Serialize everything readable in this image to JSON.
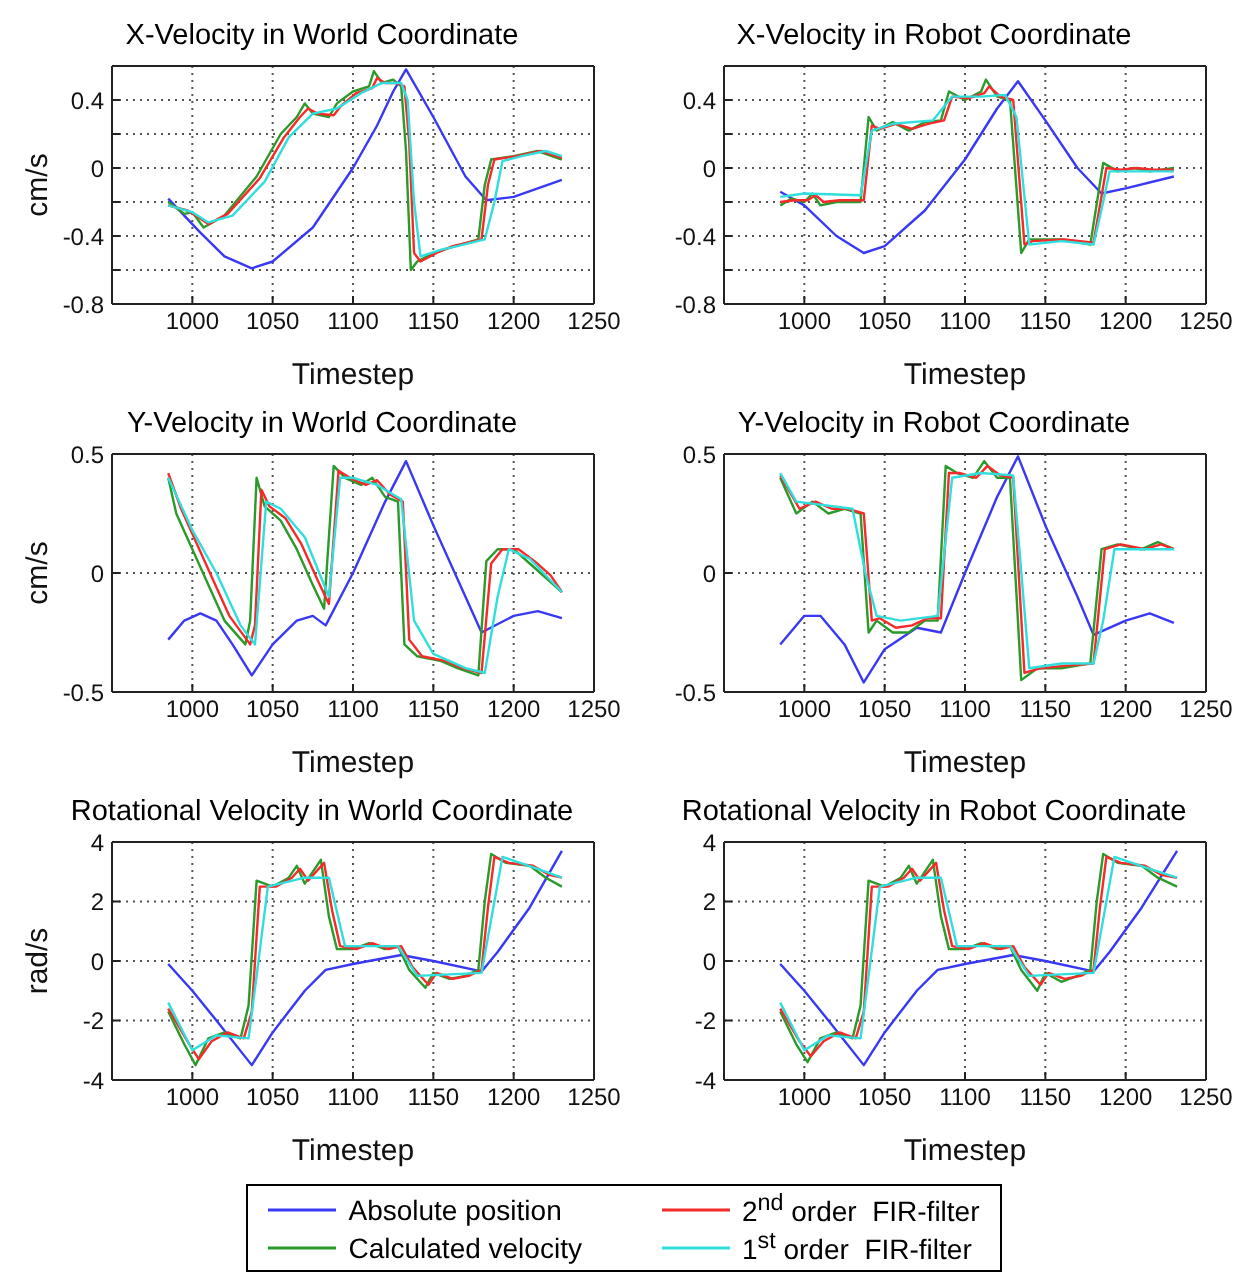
{
  "chart_data": [
    {
      "type": "line",
      "title": "X-Velocity in World Coordinate",
      "xlabel": "Timestep",
      "ylabel": "cm/s",
      "xlim": [
        950,
        1250
      ],
      "xticks": [
        1000,
        1050,
        1100,
        1150,
        1200,
        1250
      ],
      "ylim": [
        -0.8,
        0.6
      ],
      "yticks": [
        -0.8,
        {
          "value": -0.6,
          "label": null
        },
        -0.4,
        {
          "value": -0.2,
          "label": null
        },
        0,
        {
          "value": 0.2,
          "label": null
        },
        0.4
      ],
      "grid": true,
      "marker": "none",
      "line_style": "solid",
      "series": [
        {
          "color": "#3838f5",
          "x": [
            985,
            1005,
            1020,
            1037,
            1050,
            1075,
            1100,
            1115,
            1125,
            1133,
            1150,
            1170,
            1183,
            1200,
            1230
          ],
          "values": [
            -0.18,
            -0.38,
            -0.52,
            -0.59,
            -0.55,
            -0.35,
            0.0,
            0.25,
            0.45,
            0.58,
            0.3,
            -0.05,
            -0.19,
            -0.17,
            -0.07
          ]
        },
        {
          "color": "#2a9a2a",
          "x": [
            985,
            995,
            1000,
            1007,
            1020,
            1040,
            1055,
            1065,
            1070,
            1075,
            1085,
            1090,
            1100,
            1110,
            1113,
            1118,
            1125,
            1130,
            1133,
            1136,
            1140,
            1150,
            1160,
            1178,
            1182,
            1186,
            1200,
            1215,
            1230
          ],
          "values": [
            -0.2,
            -0.27,
            -0.26,
            -0.35,
            -0.28,
            -0.05,
            0.2,
            0.3,
            0.38,
            0.32,
            0.3,
            0.38,
            0.45,
            0.48,
            0.57,
            0.5,
            0.52,
            0.48,
            0.1,
            -0.6,
            -0.55,
            -0.5,
            -0.47,
            -0.42,
            -0.1,
            0.05,
            0.07,
            0.1,
            0.05
          ]
        },
        {
          "color": "#f52a2a",
          "x": [
            985,
            997,
            1002,
            1010,
            1022,
            1042,
            1057,
            1067,
            1072,
            1078,
            1088,
            1093,
            1102,
            1112,
            1115,
            1120,
            1127,
            1132,
            1135,
            1138,
            1142,
            1152,
            1162,
            1180,
            1184,
            1188,
            1202,
            1217,
            1230
          ],
          "values": [
            -0.22,
            -0.25,
            -0.28,
            -0.33,
            -0.27,
            -0.06,
            0.18,
            0.3,
            0.35,
            0.32,
            0.31,
            0.37,
            0.44,
            0.47,
            0.53,
            0.5,
            0.5,
            0.48,
            0.15,
            -0.5,
            -0.55,
            -0.5,
            -0.46,
            -0.42,
            -0.1,
            0.05,
            0.07,
            0.1,
            0.06
          ]
        },
        {
          "color": "#30dede",
          "x": [
            985,
            1000,
            1010,
            1025,
            1045,
            1060,
            1075,
            1090,
            1105,
            1118,
            1130,
            1134,
            1138,
            1142,
            1155,
            1165,
            1182,
            1188,
            1193,
            1205,
            1220,
            1230
          ],
          "values": [
            -0.22,
            -0.26,
            -0.32,
            -0.28,
            -0.08,
            0.18,
            0.32,
            0.35,
            0.44,
            0.5,
            0.5,
            0.4,
            -0.2,
            -0.52,
            -0.48,
            -0.46,
            -0.42,
            -0.2,
            0.04,
            0.07,
            0.1,
            0.07
          ]
        }
      ]
    },
    {
      "type": "line",
      "title": "X-Velocity in Robot Coordinate",
      "xlabel": "Timestep",
      "xlim": [
        950,
        1250
      ],
      "xticks": [
        1000,
        1050,
        1100,
        1150,
        1200,
        1250
      ],
      "ylim": [
        -0.8,
        0.6
      ],
      "yticks": [
        -0.8,
        {
          "value": -0.6,
          "label": null
        },
        -0.4,
        {
          "value": -0.2,
          "label": null
        },
        0,
        {
          "value": 0.2,
          "label": null
        },
        0.4
      ],
      "grid": true,
      "marker": "none",
      "line_style": "solid",
      "series": [
        {
          "color": "#3838f5",
          "x": [
            985,
            1000,
            1020,
            1037,
            1050,
            1075,
            1100,
            1120,
            1133,
            1150,
            1170,
            1185,
            1200,
            1230
          ],
          "values": [
            -0.14,
            -0.22,
            -0.4,
            -0.5,
            -0.46,
            -0.25,
            0.05,
            0.35,
            0.51,
            0.28,
            0.0,
            -0.15,
            -0.12,
            -0.05
          ]
        },
        {
          "color": "#2a9a2a",
          "x": [
            985,
            992,
            1000,
            1005,
            1010,
            1020,
            1035,
            1040,
            1045,
            1055,
            1065,
            1075,
            1085,
            1090,
            1100,
            1110,
            1113,
            1120,
            1128,
            1135,
            1140,
            1160,
            1178,
            1186,
            1195,
            1205,
            1215,
            1230
          ],
          "values": [
            -0.22,
            -0.18,
            -0.2,
            -0.15,
            -0.22,
            -0.2,
            -0.2,
            0.3,
            0.22,
            0.27,
            0.22,
            0.27,
            0.28,
            0.45,
            0.4,
            0.45,
            0.52,
            0.42,
            0.4,
            -0.5,
            -0.42,
            -0.42,
            -0.45,
            0.03,
            -0.02,
            0.0,
            -0.02,
            0.0
          ]
        },
        {
          "color": "#f52a2a",
          "x": [
            985,
            994,
            1002,
            1007,
            1012,
            1022,
            1037,
            1042,
            1047,
            1057,
            1067,
            1077,
            1087,
            1092,
            1102,
            1112,
            1115,
            1122,
            1130,
            1137,
            1142,
            1162,
            1180,
            1188,
            1197,
            1207,
            1217,
            1230
          ],
          "values": [
            -0.2,
            -0.19,
            -0.19,
            -0.16,
            -0.2,
            -0.19,
            -0.19,
            0.25,
            0.23,
            0.26,
            0.23,
            0.26,
            0.28,
            0.42,
            0.41,
            0.44,
            0.48,
            0.42,
            0.4,
            -0.45,
            -0.43,
            -0.42,
            -0.44,
            0.0,
            -0.01,
            0.0,
            -0.01,
            -0.01
          ]
        },
        {
          "color": "#30dede",
          "x": [
            985,
            1000,
            1035,
            1042,
            1055,
            1080,
            1092,
            1110,
            1125,
            1132,
            1140,
            1160,
            1180,
            1186,
            1190,
            1230
          ],
          "values": [
            -0.17,
            -0.15,
            -0.16,
            0.22,
            0.26,
            0.28,
            0.42,
            0.42,
            0.43,
            0.3,
            -0.45,
            -0.43,
            -0.45,
            -0.2,
            -0.02,
            -0.02
          ]
        }
      ]
    },
    {
      "type": "line",
      "title": "Y-Velocity in World Coordinate",
      "xlabel": "Timestep",
      "ylabel": "cm/s",
      "xlim": [
        950,
        1250
      ],
      "xticks": [
        1000,
        1050,
        1100,
        1150,
        1200,
        1250
      ],
      "ylim": [
        -0.5,
        0.5
      ],
      "yticks": [
        -0.5,
        0,
        0.5
      ],
      "grid": true,
      "marker": "none",
      "line_style": "solid",
      "series": [
        {
          "color": "#3838f5",
          "x": [
            985,
            995,
            1005,
            1015,
            1025,
            1037,
            1050,
            1065,
            1075,
            1083,
            1100,
            1120,
            1133,
            1150,
            1170,
            1180,
            1200,
            1215,
            1230
          ],
          "values": [
            -0.28,
            -0.2,
            -0.17,
            -0.2,
            -0.3,
            -0.43,
            -0.3,
            -0.2,
            -0.18,
            -0.22,
            0.0,
            0.3,
            0.47,
            0.2,
            -0.1,
            -0.25,
            -0.18,
            -0.16,
            -0.19
          ]
        },
        {
          "color": "#2a9a2a",
          "x": [
            985,
            990,
            1000,
            1010,
            1020,
            1033,
            1036,
            1040,
            1045,
            1055,
            1065,
            1075,
            1082,
            1088,
            1095,
            1105,
            1112,
            1120,
            1128,
            1132,
            1140,
            1155,
            1165,
            1178,
            1183,
            1190,
            1200,
            1210,
            1220,
            1230
          ],
          "values": [
            0.4,
            0.25,
            0.1,
            -0.05,
            -0.2,
            -0.3,
            -0.2,
            0.4,
            0.28,
            0.22,
            0.1,
            -0.05,
            -0.15,
            0.45,
            0.4,
            0.37,
            0.4,
            0.32,
            0.3,
            -0.3,
            -0.35,
            -0.37,
            -0.4,
            -0.43,
            0.05,
            0.1,
            0.1,
            0.04,
            -0.02,
            -0.08
          ]
        },
        {
          "color": "#f52a2a",
          "x": [
            985,
            993,
            1003,
            1013,
            1023,
            1036,
            1039,
            1043,
            1048,
            1058,
            1068,
            1078,
            1085,
            1091,
            1098,
            1108,
            1115,
            1123,
            1131,
            1135,
            1143,
            1158,
            1168,
            1180,
            1186,
            1193,
            1203,
            1213,
            1223,
            1230
          ],
          "values": [
            0.42,
            0.27,
            0.12,
            -0.03,
            -0.18,
            -0.3,
            -0.22,
            0.35,
            0.28,
            0.23,
            0.12,
            -0.03,
            -0.13,
            0.43,
            0.4,
            0.37,
            0.39,
            0.33,
            0.3,
            -0.28,
            -0.35,
            -0.37,
            -0.4,
            -0.42,
            0.04,
            0.1,
            0.1,
            0.05,
            -0.01,
            -0.08
          ]
        },
        {
          "color": "#30dede",
          "x": [
            985,
            1000,
            1015,
            1030,
            1039,
            1046,
            1055,
            1070,
            1085,
            1092,
            1100,
            1115,
            1130,
            1138,
            1150,
            1170,
            1182,
            1190,
            1197,
            1210,
            1230
          ],
          "values": [
            0.4,
            0.18,
            0.0,
            -0.22,
            -0.3,
            0.3,
            0.27,
            0.15,
            -0.1,
            0.4,
            0.4,
            0.37,
            0.31,
            -0.2,
            -0.34,
            -0.4,
            -0.42,
            -0.1,
            0.1,
            0.06,
            -0.08
          ]
        }
      ]
    },
    {
      "type": "line",
      "title": "Y-Velocity in Robot Coordinate",
      "xlabel": "Timestep",
      "xlim": [
        950,
        1250
      ],
      "xticks": [
        1000,
        1050,
        1100,
        1150,
        1200,
        1250
      ],
      "ylim": [
        -0.5,
        0.5
      ],
      "yticks": [
        -0.5,
        0,
        0.5
      ],
      "grid": true,
      "marker": "none",
      "line_style": "solid",
      "series": [
        {
          "color": "#3838f5",
          "x": [
            985,
            1000,
            1010,
            1025,
            1037,
            1050,
            1070,
            1085,
            1100,
            1120,
            1133,
            1150,
            1170,
            1180,
            1200,
            1215,
            1230
          ],
          "values": [
            -0.3,
            -0.18,
            -0.18,
            -0.3,
            -0.46,
            -0.32,
            -0.23,
            -0.25,
            0.0,
            0.32,
            0.49,
            0.2,
            -0.1,
            -0.26,
            -0.2,
            -0.17,
            -0.21
          ]
        },
        {
          "color": "#2a9a2a",
          "x": [
            985,
            995,
            1005,
            1015,
            1025,
            1035,
            1040,
            1045,
            1055,
            1065,
            1075,
            1083,
            1088,
            1095,
            1105,
            1112,
            1120,
            1128,
            1135,
            1145,
            1160,
            1178,
            1185,
            1195,
            1210,
            1220,
            1230
          ],
          "values": [
            0.4,
            0.25,
            0.3,
            0.25,
            0.27,
            0.25,
            -0.25,
            -0.2,
            -0.25,
            -0.25,
            -0.2,
            -0.2,
            0.45,
            0.42,
            0.4,
            0.47,
            0.4,
            0.4,
            -0.45,
            -0.4,
            -0.4,
            -0.38,
            0.1,
            0.12,
            0.1,
            0.13,
            0.1
          ]
        },
        {
          "color": "#f52a2a",
          "x": [
            985,
            997,
            1007,
            1017,
            1027,
            1037,
            1042,
            1047,
            1057,
            1067,
            1077,
            1085,
            1090,
            1097,
            1107,
            1114,
            1122,
            1130,
            1137,
            1147,
            1162,
            1180,
            1187,
            1197,
            1212,
            1222,
            1230
          ],
          "values": [
            0.41,
            0.27,
            0.3,
            0.27,
            0.27,
            0.25,
            -0.2,
            -0.19,
            -0.23,
            -0.22,
            -0.19,
            -0.19,
            0.42,
            0.42,
            0.4,
            0.45,
            0.41,
            0.4,
            -0.42,
            -0.4,
            -0.39,
            -0.38,
            0.1,
            0.12,
            0.1,
            0.12,
            0.1
          ]
        },
        {
          "color": "#30dede",
          "x": [
            985,
            995,
            1030,
            1038,
            1045,
            1060,
            1083,
            1092,
            1110,
            1130,
            1140,
            1160,
            1180,
            1186,
            1193,
            1230
          ],
          "values": [
            0.42,
            0.3,
            0.27,
            0.0,
            -0.18,
            -0.2,
            -0.18,
            0.4,
            0.42,
            0.41,
            -0.4,
            -0.38,
            -0.38,
            -0.2,
            0.1,
            0.1
          ]
        }
      ]
    },
    {
      "type": "line",
      "title": "Rotational Velocity in World Coordinate",
      "xlabel": "Timestep",
      "ylabel": "rad/s",
      "xlim": [
        950,
        1250
      ],
      "xticks": [
        1000,
        1050,
        1100,
        1150,
        1200,
        1250
      ],
      "ylim": [
        -4,
        4
      ],
      "yticks": [
        -4,
        -2,
        0,
        2,
        4
      ],
      "grid": true,
      "marker": "none",
      "line_style": "solid",
      "series": [
        {
          "color": "#3838f5",
          "x": [
            985,
            1000,
            1015,
            1037,
            1050,
            1070,
            1083,
            1100,
            1130,
            1150,
            1180,
            1190,
            1210,
            1230
          ],
          "values": [
            -0.1,
            -1.0,
            -2.0,
            -3.5,
            -2.4,
            -1.0,
            -0.3,
            -0.1,
            0.2,
            0.0,
            -0.35,
            0.3,
            1.8,
            3.7
          ]
        },
        {
          "color": "#2a9a2a",
          "x": [
            985,
            995,
            1002,
            1010,
            1020,
            1030,
            1035,
            1040,
            1050,
            1060,
            1065,
            1070,
            1080,
            1085,
            1090,
            1100,
            1110,
            1120,
            1128,
            1135,
            1145,
            1150,
            1160,
            1170,
            1178,
            1182,
            1186,
            1195,
            1210,
            1220,
            1230
          ],
          "values": [
            -1.7,
            -2.8,
            -3.5,
            -2.6,
            -2.4,
            -2.6,
            -1.5,
            2.7,
            2.5,
            2.8,
            3.2,
            2.6,
            3.4,
            1.5,
            0.4,
            0.4,
            0.6,
            0.4,
            0.5,
            -0.3,
            -0.9,
            -0.4,
            -0.6,
            -0.5,
            -0.3,
            2.0,
            3.6,
            3.3,
            3.2,
            2.8,
            2.5
          ]
        },
        {
          "color": "#f52a2a",
          "x": [
            985,
            997,
            1004,
            1012,
            1022,
            1032,
            1037,
            1042,
            1052,
            1062,
            1067,
            1072,
            1082,
            1087,
            1092,
            1102,
            1112,
            1122,
            1130,
            1137,
            1147,
            1152,
            1162,
            1172,
            1180,
            1184,
            1188,
            1197,
            1212,
            1222,
            1230
          ],
          "values": [
            -1.6,
            -2.7,
            -3.3,
            -2.7,
            -2.4,
            -2.6,
            -1.7,
            2.5,
            2.5,
            2.8,
            3.1,
            2.7,
            3.3,
            1.7,
            0.5,
            0.4,
            0.6,
            0.4,
            0.5,
            -0.2,
            -0.8,
            -0.4,
            -0.6,
            -0.5,
            -0.3,
            1.8,
            3.5,
            3.3,
            3.2,
            2.9,
            2.8
          ]
        },
        {
          "color": "#30dede",
          "x": [
            985,
            1000,
            1015,
            1035,
            1040,
            1047,
            1070,
            1085,
            1095,
            1128,
            1140,
            1180,
            1188,
            1193,
            1215,
            1230
          ],
          "values": [
            -1.4,
            -3.0,
            -2.5,
            -2.6,
            -0.5,
            2.5,
            2.8,
            2.8,
            0.5,
            0.5,
            -0.5,
            -0.4,
            2.0,
            3.5,
            3.1,
            2.8
          ]
        }
      ]
    },
    {
      "type": "line",
      "title": "Rotational Velocity in Robot Coordinate",
      "xlabel": "Timestep",
      "xlim": [
        950,
        1250
      ],
      "xticks": [
        1000,
        1050,
        1100,
        1150,
        1200,
        1250
      ],
      "ylim": [
        -4,
        4
      ],
      "yticks": [
        -4,
        -2,
        0,
        2,
        4
      ],
      "grid": true,
      "legend": "bottom",
      "marker": "none",
      "line_style": "solid",
      "series": [
        {
          "name": "Absolute position",
          "color": "#3838f5",
          "x": [
            985,
            1000,
            1015,
            1037,
            1050,
            1070,
            1083,
            1100,
            1130,
            1150,
            1180,
            1190,
            1210,
            1232
          ],
          "values": [
            -0.1,
            -1.0,
            -2.0,
            -3.5,
            -2.4,
            -1.0,
            -0.3,
            -0.1,
            0.2,
            0.0,
            -0.35,
            0.3,
            1.8,
            3.7
          ]
        },
        {
          "name": "Calculated velocity",
          "color": "#2a9a2a",
          "x": [
            985,
            995,
            1002,
            1010,
            1020,
            1030,
            1035,
            1040,
            1050,
            1060,
            1065,
            1070,
            1080,
            1085,
            1090,
            1100,
            1110,
            1120,
            1128,
            1135,
            1145,
            1150,
            1160,
            1170,
            1178,
            1182,
            1186,
            1195,
            1210,
            1220,
            1232
          ],
          "values": [
            -1.7,
            -2.8,
            -3.4,
            -2.6,
            -2.4,
            -2.6,
            -1.5,
            2.7,
            2.5,
            2.8,
            3.2,
            2.6,
            3.4,
            1.5,
            0.4,
            0.4,
            0.6,
            0.4,
            0.5,
            -0.3,
            -1.0,
            -0.4,
            -0.7,
            -0.5,
            -0.3,
            2.0,
            3.6,
            3.3,
            3.2,
            2.8,
            2.5
          ]
        },
        {
          "name": "2$^{nd}$ order  FIR-filter",
          "color": "#f52a2a",
          "x": [
            985,
            997,
            1004,
            1012,
            1022,
            1032,
            1037,
            1042,
            1052,
            1062,
            1067,
            1072,
            1082,
            1087,
            1092,
            1102,
            1112,
            1122,
            1130,
            1137,
            1147,
            1152,
            1162,
            1172,
            1180,
            1184,
            1188,
            1197,
            1212,
            1222,
            1232
          ],
          "values": [
            -1.6,
            -2.7,
            -3.2,
            -2.7,
            -2.4,
            -2.6,
            -1.7,
            2.5,
            2.5,
            2.8,
            3.1,
            2.7,
            3.3,
            1.7,
            0.5,
            0.4,
            0.6,
            0.4,
            0.5,
            -0.2,
            -0.8,
            -0.4,
            -0.6,
            -0.5,
            -0.3,
            1.8,
            3.5,
            3.3,
            3.2,
            2.9,
            2.8
          ]
        },
        {
          "name": "1$^{st}$ order  FIR-filter",
          "color": "#30dede",
          "x": [
            985,
            1000,
            1015,
            1035,
            1040,
            1047,
            1070,
            1085,
            1095,
            1128,
            1140,
            1180,
            1188,
            1193,
            1215,
            1232
          ],
          "values": [
            -1.4,
            -3.0,
            -2.5,
            -2.6,
            -0.5,
            2.5,
            2.8,
            2.8,
            0.5,
            0.5,
            -0.5,
            -0.4,
            2.0,
            3.5,
            3.1,
            2.8
          ]
        }
      ]
    }
  ]
}
